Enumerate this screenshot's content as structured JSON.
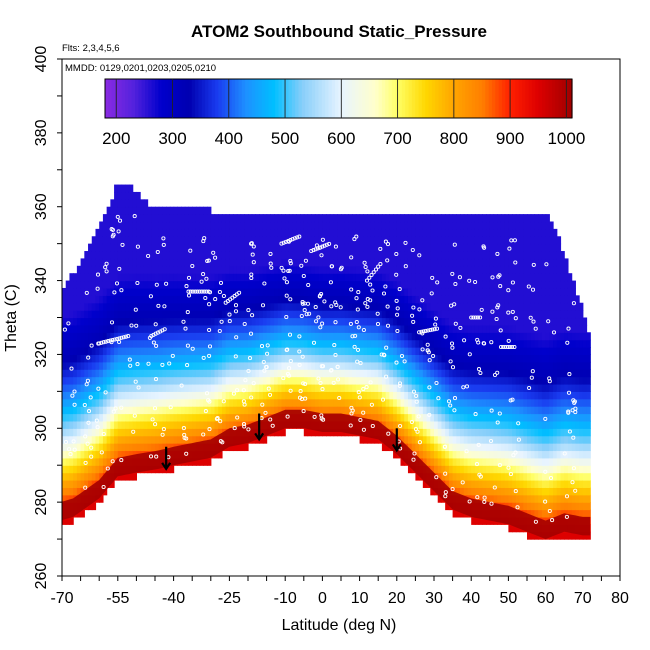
{
  "chart_data": {
    "type": "heatmap",
    "title": "ATOM2 Southbound Static_Pressure",
    "subtitle_flights": "Flts: 2,3,4,5,6",
    "subtitle_dates": "MMDD: 0129,0201,0203,0205,0210",
    "xlabel": "Latitude (deg N)",
    "ylabel": "Theta (C)",
    "xlim": [
      -70,
      80
    ],
    "ylim": [
      260,
      400
    ],
    "x_ticks": [
      -70,
      -55,
      -40,
      -25,
      -10,
      0,
      10,
      20,
      30,
      40,
      50,
      60,
      70,
      80
    ],
    "x_tick_labels": [
      "-70",
      "-55",
      "-40",
      "-25",
      "-10",
      "0",
      "10",
      "20",
      "30",
      "40",
      "50",
      "60",
      "70",
      "80"
    ],
    "y_ticks": [
      260,
      280,
      300,
      320,
      340,
      360,
      380,
      400
    ],
    "y_tick_labels": [
      "260",
      "280",
      "300",
      "320",
      "340",
      "360",
      "380",
      "400"
    ],
    "colorbar": {
      "min": 180,
      "max": 1010,
      "ticks": [
        200,
        300,
        400,
        500,
        600,
        700,
        800,
        900,
        1000
      ],
      "tick_labels": [
        "200",
        "300",
        "400",
        "500",
        "600",
        "700",
        "800",
        "900",
        "1000"
      ],
      "stops": [
        [
          180,
          "#8a2be2"
        ],
        [
          230,
          "#5522dd"
        ],
        [
          280,
          "#0000cc"
        ],
        [
          330,
          "#0000b0"
        ],
        [
          380,
          "#1a3cf0"
        ],
        [
          430,
          "#1e90ff"
        ],
        [
          480,
          "#00bfff"
        ],
        [
          530,
          "#87cefa"
        ],
        [
          600,
          "#e8f4ff"
        ],
        [
          660,
          "#ffffcc"
        ],
        [
          700,
          "#ffff66"
        ],
        [
          750,
          "#ffd700"
        ],
        [
          800,
          "#ffa500"
        ],
        [
          850,
          "#ff7f00"
        ],
        [
          900,
          "#ff2000"
        ],
        [
          950,
          "#dd0000"
        ],
        [
          1010,
          "#a00000"
        ]
      ]
    },
    "profile_top_lat": [
      -74,
      -70,
      -67,
      -64,
      -61,
      -58,
      -55,
      -52,
      -49,
      -46,
      -40,
      -30,
      -20,
      -10,
      0,
      10,
      20,
      30,
      40,
      50,
      55,
      60,
      63,
      65,
      67,
      70,
      72
    ],
    "profile_top_theta": [
      330,
      336,
      341,
      346,
      352,
      358,
      366,
      365,
      362,
      359,
      359,
      358,
      358,
      358,
      358,
      358,
      358,
      358,
      358,
      358,
      358,
      357,
      352,
      346,
      340,
      332,
      322
    ],
    "profile_bottom_lat": [
      -74,
      -67,
      -60,
      -55,
      -50,
      -44,
      -40,
      -35,
      -30,
      -25,
      -20,
      -15,
      -10,
      -5,
      0,
      5,
      10,
      15,
      20,
      25,
      30,
      35,
      40,
      45,
      50,
      55,
      60,
      65,
      70,
      72
    ],
    "profile_bottom_theta": [
      274,
      276,
      281,
      287,
      288,
      289,
      290,
      291,
      292,
      295,
      296,
      298,
      300,
      300,
      299,
      299,
      298,
      297,
      293,
      288,
      283,
      278,
      276,
      275,
      274,
      272,
      270,
      272,
      271,
      271
    ],
    "level_bands": [
      {
        "pressure": 950,
        "offset": 0
      },
      {
        "pressure": 880,
        "offset": 5
      },
      {
        "pressure": 800,
        "offset": 10
      },
      {
        "pressure": 720,
        "offset": 15
      },
      {
        "pressure": 620,
        "offset": 20
      },
      {
        "pressure": 520,
        "offset": 26
      },
      {
        "pressure": 420,
        "offset": 34
      },
      {
        "pressure": 320,
        "offset": 44
      },
      {
        "pressure": 260,
        "offset": 56
      }
    ],
    "arrows": [
      {
        "lat": -42,
        "theta_top": 295,
        "theta_bottom": 289
      },
      {
        "lat": -17,
        "theta_top": 304,
        "theta_bottom": 297
      },
      {
        "lat": 20,
        "theta_top": 300,
        "theta_bottom": 294
      }
    ],
    "grid": false,
    "legend": "colorbar-top"
  }
}
